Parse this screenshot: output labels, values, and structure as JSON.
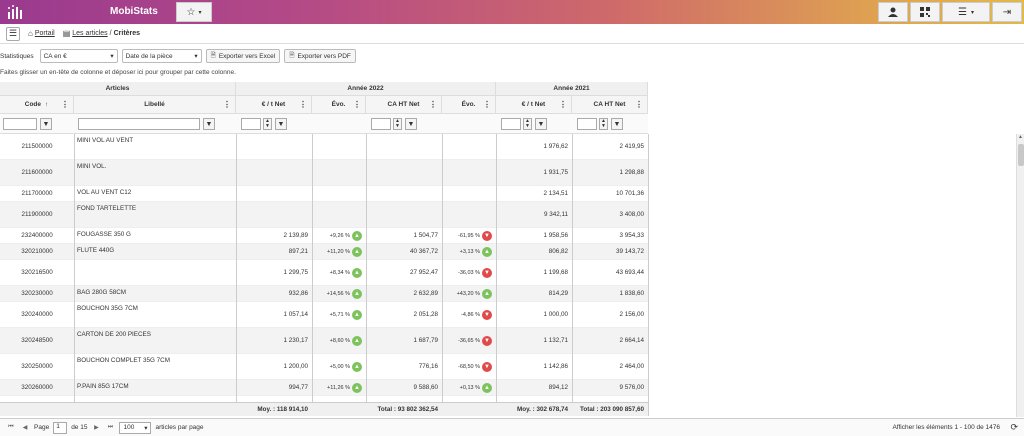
{
  "app": {
    "name": "MobiStats"
  },
  "breadcrumb": {
    "portal": "Portail",
    "articles": "Les articles",
    "current": "Critères"
  },
  "toolbar": {
    "statistics_label": "Statistiques",
    "stat_select": "CA en €",
    "date_select": "Date de la pièce",
    "export_excel": "Exporter vers Excel",
    "export_pdf": "Exporter vers PDF"
  },
  "group_hint": "Faites glisser un en-tête de colonne et déposer ici pour grouper par cette colonne.",
  "groups": {
    "articles": "Articles",
    "y2022": "Année 2022",
    "y2021": "Année 2021"
  },
  "columns": {
    "code": "Code",
    "libelle": "Libellé",
    "eur_t_2022": "€ / t Net",
    "evo1": "Évo.",
    "ca_2022": "CA HT Net",
    "evo2": "Évo.",
    "eur_t_2021": "€ / t Net",
    "ca_2021": "CA HT Net"
  },
  "rows": [
    {
      "code": "211500000",
      "label": "MINI VOL AU VENT",
      "e22": "",
      "evo1": "",
      "ev1": "",
      "ca22": "",
      "evo2": "",
      "ev2": "",
      "e21": "1 976,62",
      "ca21": "2 419,95"
    },
    {
      "code": "211600000",
      "label": "MINI VOL.",
      "e22": "",
      "evo1": "",
      "ev1": "",
      "ca22": "",
      "evo2": "",
      "ev2": "",
      "e21": "1 931,75",
      "ca21": "1 298,88"
    },
    {
      "code": "211700000",
      "label": "VOL AU VENT C12",
      "e22": "",
      "evo1": "",
      "ev1": "",
      "ca22": "",
      "evo2": "",
      "ev2": "",
      "e21": "2 134,51",
      "ca21": "10 701,36"
    },
    {
      "code": "211900000",
      "label": "FOND TARTELETTE",
      "e22": "",
      "evo1": "",
      "ev1": "",
      "ca22": "",
      "evo2": "",
      "ev2": "",
      "e21": "9 342,11",
      "ca21": "3 408,00"
    },
    {
      "code": "232400000",
      "label": "FOUGASSE 350 G",
      "e22": "2 139,89",
      "evo1": "+9,26 %",
      "ev1": "up",
      "ca22": "1 504,77",
      "evo2": "-61,95 %",
      "ev2": "down",
      "e21": "1 958,56",
      "ca21": "3 954,33"
    },
    {
      "code": "320210000",
      "label": "FLUTE 440G",
      "e22": "897,21",
      "evo1": "+11,20 %",
      "ev1": "up",
      "ca22": "40 367,72",
      "evo2": "+3,13 %",
      "ev2": "up",
      "e21": "806,82",
      "ca21": "39 143,72"
    },
    {
      "code": "320216500",
      "label": "",
      "e22": "1 299,75",
      "evo1": "+8,34 %",
      "ev1": "up",
      "ca22": "27 952,47",
      "evo2": "-36,03 %",
      "ev2": "down",
      "e21": "1 199,68",
      "ca21": "43 693,44"
    },
    {
      "code": "320230000",
      "label": "BAG 280G 58CM",
      "e22": "932,86",
      "evo1": "+14,56 %",
      "ev1": "up",
      "ca22": "2 632,89",
      "evo2": "+43,20 %",
      "ev2": "up",
      "e21": "814,29",
      "ca21": "1 838,60"
    },
    {
      "code": "320240000",
      "label": "BOUCHON 35G 7CM",
      "e22": "1 057,14",
      "evo1": "+5,71 %",
      "ev1": "up",
      "ca22": "2 051,28",
      "evo2": "-4,86 %",
      "ev2": "down",
      "e21": "1 000,00",
      "ca21": "2 156,00"
    },
    {
      "code": "320248500",
      "label": "CARTON DE 200 PIECES",
      "e22": "1 230,17",
      "evo1": "+8,60 %",
      "ev1": "up",
      "ca22": "1 687,79",
      "evo2": "-36,65 %",
      "ev2": "down",
      "e21": "1 132,71",
      "ca21": "2 664,14"
    },
    {
      "code": "320250000",
      "label": "BOUCHON COMPLET 35G 7CM",
      "e22": "1 200,00",
      "evo1": "+5,00 %",
      "ev1": "up",
      "ca22": "776,16",
      "evo2": "-68,50 %",
      "ev2": "down",
      "e21": "1 142,86",
      "ca21": "2 464,00"
    },
    {
      "code": "320260000",
      "label": "P.PAIN 85G 17CM",
      "e22": "994,77",
      "evo1": "+11,26 %",
      "ev1": "up",
      "ca22": "9 588,60",
      "evo2": "+0,13 %",
      "ev2": "up",
      "e21": "894,12",
      "ca21": "9 576,00"
    }
  ],
  "totals": {
    "moy2022": "Moy. : 118 914,10",
    "tot2022": "Total : 93 802 362,54",
    "moy2021": "Moy. : 302 678,74",
    "tot2021": "Total : 203 090 857,60"
  },
  "pager": {
    "page_label": "Page",
    "page_value": "1",
    "of_pages": "de 15",
    "per_page": "100",
    "per_page_label": "articles par page",
    "display_info": "Afficher les éléments 1 - 100 de 1476"
  }
}
